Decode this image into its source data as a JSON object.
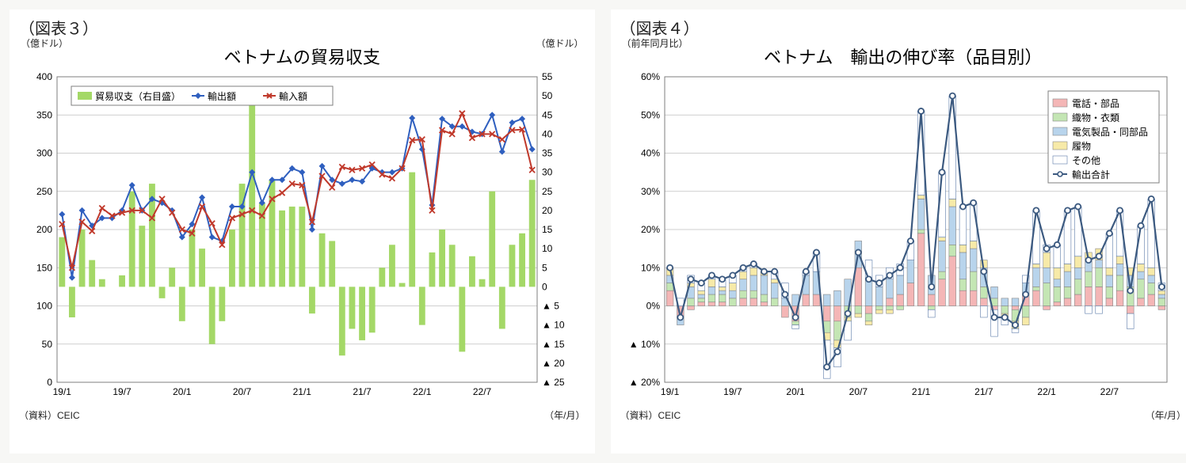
{
  "chart3": {
    "figLabel": "（図表３）",
    "title": "ベトナムの貿易収支",
    "yLeftUnit": "（億ドル）",
    "yRightUnit": "（億ドル）",
    "xAxisUnit": "（年/月）",
    "source": "（資料）CEIC",
    "yLeft": {
      "min": 0,
      "max": 400,
      "step": 50
    },
    "yRight": {
      "min": -25,
      "max": 55,
      "step": 5
    },
    "xTicks": [
      "19/1",
      "19/7",
      "20/1",
      "20/7",
      "21/1",
      "21/7",
      "22/1",
      "22/7"
    ],
    "nPoints": 48,
    "legend": {
      "bar": "貿易収支（右目盛）",
      "line1": "輸出額",
      "line2": "輸入額"
    },
    "colors": {
      "bar": "#a4d867",
      "exports": "#2f5fbf",
      "imports": "#c0392b",
      "grid": "#bfbfbf",
      "bg": "#ffffff"
    },
    "trade_balance": [
      13,
      -8,
      15,
      7,
      2,
      0,
      3,
      25,
      16,
      27,
      -3,
      5,
      -9,
      15,
      10,
      -15,
      -9,
      15,
      27,
      50,
      22,
      28,
      20,
      21,
      21,
      -7,
      14,
      12,
      -18,
      -11,
      -14,
      -12,
      5,
      11,
      1,
      30,
      -10,
      9,
      15,
      11,
      -17,
      8,
      2,
      25,
      -11,
      11,
      14,
      28
    ],
    "exports": [
      220,
      137,
      225,
      205,
      215,
      215,
      225,
      258,
      225,
      240,
      235,
      225,
      190,
      207,
      242,
      190,
      185,
      230,
      230,
      275,
      235,
      265,
      265,
      280,
      275,
      200,
      283,
      265,
      260,
      265,
      263,
      280,
      275,
      275,
      280,
      346,
      305,
      232,
      345,
      335,
      335,
      328,
      325,
      350,
      302,
      340,
      345,
      305
    ],
    "imports": [
      207,
      150,
      210,
      198,
      228,
      218,
      222,
      225,
      225,
      215,
      240,
      222,
      200,
      195,
      230,
      208,
      180,
      215,
      220,
      225,
      218,
      240,
      248,
      260,
      258,
      210,
      270,
      255,
      282,
      278,
      280,
      285,
      272,
      267,
      280,
      317,
      318,
      225,
      330,
      325,
      352,
      320,
      325,
      325,
      318,
      330,
      331,
      278
    ]
  },
  "chart4": {
    "figLabel": "（図表４）",
    "title": "ベトナム　輸出の伸び率（品目別）",
    "yUnit": "（前年同月比）",
    "xAxisUnit": "（年/月）",
    "source": "（資料）CEIC",
    "y": {
      "min": -20,
      "max": 60,
      "step": 10
    },
    "xTicks": [
      "19/1",
      "19/7",
      "20/1",
      "20/7",
      "21/1",
      "21/7",
      "22/1",
      "22/7"
    ],
    "nPoints": 48,
    "legend": {
      "s1": "電話・部品",
      "s2": "織物・衣類",
      "s3": "電気製品・同部品",
      "s4": "履物",
      "s5": "その他",
      "line": "輸出合計"
    },
    "colors": {
      "phones": "#f4b6b6",
      "textiles": "#c4e6b4",
      "electronics": "#b8d4ec",
      "footwear": "#f7eaa8",
      "other": "#ffffff",
      "otherBorder": "#5b7aa8",
      "total": "#3c5a80",
      "grid": "#bfbfbf"
    },
    "phones": [
      4,
      -3,
      -1,
      1,
      1,
      1,
      0,
      2,
      2,
      1,
      0,
      -3,
      -4,
      3,
      3,
      -4,
      -4,
      0,
      10,
      -2,
      0,
      2,
      3,
      6,
      19,
      3,
      7,
      13,
      4,
      4,
      2,
      -1,
      0,
      -1,
      3,
      4,
      -1,
      1,
      2,
      3,
      5,
      5,
      2,
      4,
      -2,
      2,
      3,
      -1
    ],
    "textiles": [
      2,
      0,
      2,
      1,
      2,
      2,
      2,
      2,
      2,
      2,
      2,
      0,
      -1,
      0,
      0,
      -3,
      -5,
      -3,
      -2,
      -2,
      -1,
      -1,
      -1,
      0,
      1,
      -1,
      2,
      3,
      3,
      5,
      3,
      2,
      -2,
      -3,
      -3,
      1,
      6,
      4,
      3,
      4,
      4,
      5,
      3,
      4,
      5,
      5,
      3,
      2
    ],
    "electronics": [
      2,
      -2,
      3,
      1,
      2,
      1,
      2,
      3,
      4,
      5,
      4,
      2,
      3,
      5,
      6,
      3,
      4,
      7,
      7,
      7,
      5,
      5,
      5,
      6,
      8,
      5,
      8,
      10,
      7,
      6,
      5,
      3,
      2,
      2,
      3,
      5,
      4,
      2,
      4,
      3,
      3,
      2,
      3,
      3,
      3,
      2,
      2,
      1
    ],
    "footwear": [
      2,
      0,
      1,
      1,
      2,
      1,
      2,
      2,
      2,
      1,
      1,
      0,
      0,
      0,
      0,
      -2,
      -2,
      -1,
      -1,
      -1,
      -1,
      -1,
      0,
      0,
      1,
      0,
      1,
      2,
      2,
      2,
      2,
      0,
      -1,
      -2,
      -2,
      1,
      4,
      3,
      2,
      3,
      2,
      3,
      2,
      2,
      2,
      2,
      2,
      1
    ],
    "other": [
      0,
      2,
      2,
      2,
      1,
      2,
      2,
      1,
      1,
      0,
      2,
      4,
      -1,
      1,
      5,
      -10,
      -5,
      -5,
      0,
      5,
      3,
      3,
      3,
      5,
      22,
      -2,
      17,
      27,
      10,
      10,
      -3,
      -7,
      -2,
      -1,
      2,
      14,
      2,
      6,
      14,
      13,
      -2,
      -2,
      9,
      12,
      -4,
      10,
      18,
      2
    ],
    "total": [
      10,
      -3,
      7,
      6,
      8,
      7,
      8,
      10,
      11,
      9,
      9,
      3,
      -3,
      9,
      14,
      -16,
      -12,
      -2,
      14,
      7,
      6,
      8,
      10,
      17,
      51,
      5,
      35,
      55,
      26,
      27,
      9,
      -3,
      -3,
      -5,
      3,
      25,
      15,
      16,
      25,
      26,
      12,
      13,
      19,
      25,
      4,
      21,
      28,
      5
    ]
  }
}
